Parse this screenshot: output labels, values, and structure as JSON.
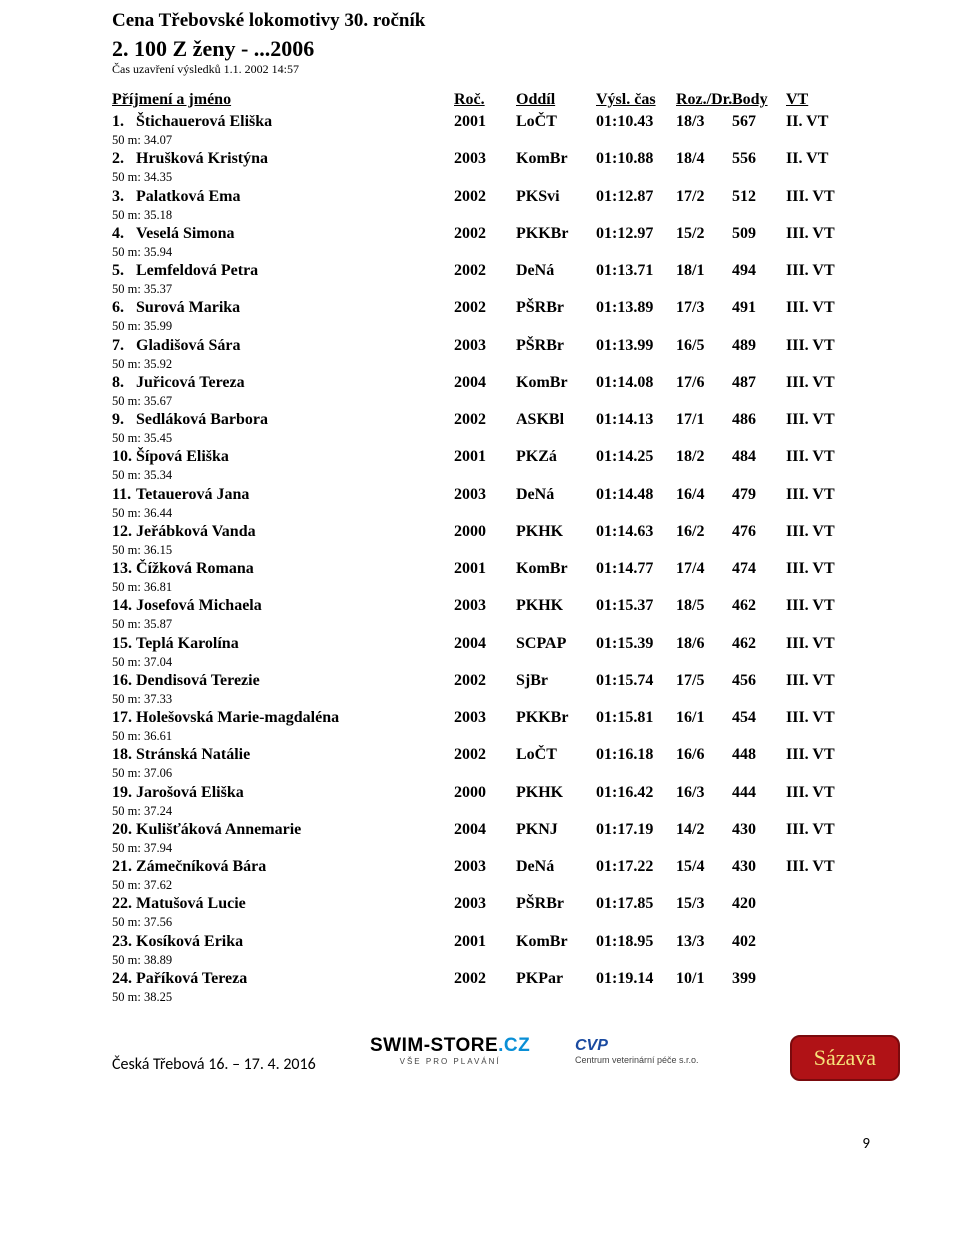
{
  "header": {
    "title": "Cena Třebovské lokomotivy 30. ročník",
    "event": "2. 100 Z ženy - ...2006",
    "closing": "Čas uzavření výsledků 1.1. 2002 14:57"
  },
  "columns": {
    "name": "Příjmení a jméno",
    "roc": "Roč.",
    "oddil": "Oddíl",
    "cas": "Výsl. čas",
    "roz": "Roz./Dr.",
    "body": "Body",
    "vt": "VT"
  },
  "rows": [
    {
      "rank": "1.",
      "name": "Štichauerová Eliška",
      "roc": "2001",
      "oddil": "LoČT",
      "cas": "01:10.43",
      "roz": "18/3",
      "body": "567",
      "vt": "II. VT",
      "split": "50 m: 34.07"
    },
    {
      "rank": "2.",
      "name": "Hrušková Kristýna",
      "roc": "2003",
      "oddil": "KomBr",
      "cas": "01:10.88",
      "roz": "18/4",
      "body": "556",
      "vt": "II. VT",
      "split": "50 m: 34.35"
    },
    {
      "rank": "3.",
      "name": "Palatková Ema",
      "roc": "2002",
      "oddil": "PKSvi",
      "cas": "01:12.87",
      "roz": "17/2",
      "body": "512",
      "vt": "III. VT",
      "split": "50 m: 35.18"
    },
    {
      "rank": "4.",
      "name": "Veselá Simona",
      "roc": "2002",
      "oddil": "PKKBr",
      "cas": "01:12.97",
      "roz": "15/2",
      "body": "509",
      "vt": "III. VT",
      "split": "50 m: 35.94"
    },
    {
      "rank": "5.",
      "name": "Lemfeldová Petra",
      "roc": "2002",
      "oddil": "DeNá",
      "cas": "01:13.71",
      "roz": "18/1",
      "body": "494",
      "vt": "III. VT",
      "split": "50 m: 35.37"
    },
    {
      "rank": "6.",
      "name": "Surová Marika",
      "roc": "2002",
      "oddil": "PŠRBr",
      "cas": "01:13.89",
      "roz": "17/3",
      "body": "491",
      "vt": "III. VT",
      "split": "50 m: 35.99"
    },
    {
      "rank": "7.",
      "name": "Gladišová Sára",
      "roc": "2003",
      "oddil": "PŠRBr",
      "cas": "01:13.99",
      "roz": "16/5",
      "body": "489",
      "vt": "III. VT",
      "split": "50 m: 35.92"
    },
    {
      "rank": "8.",
      "name": "Juřicová Tereza",
      "roc": "2004",
      "oddil": "KomBr",
      "cas": "01:14.08",
      "roz": "17/6",
      "body": "487",
      "vt": "III. VT",
      "split": "50 m: 35.67"
    },
    {
      "rank": "9.",
      "name": "Sedláková Barbora",
      "roc": "2002",
      "oddil": "ASKBl",
      "cas": "01:14.13",
      "roz": "17/1",
      "body": "486",
      "vt": "III. VT",
      "split": "50 m: 35.45"
    },
    {
      "rank": "10.",
      "name": "Šípová Eliška",
      "roc": "2001",
      "oddil": "PKZá",
      "cas": "01:14.25",
      "roz": "18/2",
      "body": "484",
      "vt": "III. VT",
      "split": "50 m: 35.34"
    },
    {
      "rank": "11.",
      "name": "Tetauerová Jana",
      "roc": "2003",
      "oddil": "DeNá",
      "cas": "01:14.48",
      "roz": "16/4",
      "body": "479",
      "vt": "III. VT",
      "split": "50 m: 36.44"
    },
    {
      "rank": "12.",
      "name": "Jeřábková Vanda",
      "roc": "2000",
      "oddil": "PKHK",
      "cas": "01:14.63",
      "roz": "16/2",
      "body": "476",
      "vt": "III. VT",
      "split": "50 m: 36.15"
    },
    {
      "rank": "13.",
      "name": "Čížková Romana",
      "roc": "2001",
      "oddil": "KomBr",
      "cas": "01:14.77",
      "roz": "17/4",
      "body": "474",
      "vt": "III. VT",
      "split": "50 m: 36.81"
    },
    {
      "rank": "14.",
      "name": "Josefová Michaela",
      "roc": "2003",
      "oddil": "PKHK",
      "cas": "01:15.37",
      "roz": "18/5",
      "body": "462",
      "vt": "III. VT",
      "split": "50 m: 35.87"
    },
    {
      "rank": "15.",
      "name": "Teplá Karolína",
      "roc": "2004",
      "oddil": "SCPAP",
      "cas": "01:15.39",
      "roz": "18/6",
      "body": "462",
      "vt": "III. VT",
      "split": "50 m: 37.04"
    },
    {
      "rank": "16.",
      "name": "Dendisová Terezie",
      "roc": "2002",
      "oddil": "SjBr",
      "cas": "01:15.74",
      "roz": "17/5",
      "body": "456",
      "vt": "III. VT",
      "split": "50 m: 37.33"
    },
    {
      "rank": "17.",
      "name": "Holešovská Marie-magdaléna",
      "roc": "2003",
      "oddil": "PKKBr",
      "cas": "01:15.81",
      "roz": "16/1",
      "body": "454",
      "vt": "III. VT",
      "split": "50 m: 36.61"
    },
    {
      "rank": "18.",
      "name": "Stránská Natálie",
      "roc": "2002",
      "oddil": "LoČT",
      "cas": "01:16.18",
      "roz": "16/6",
      "body": "448",
      "vt": "III. VT",
      "split": "50 m: 37.06"
    },
    {
      "rank": "19.",
      "name": "Jarošová Eliška",
      "roc": "2000",
      "oddil": "PKHK",
      "cas": "01:16.42",
      "roz": "16/3",
      "body": "444",
      "vt": "III. VT",
      "split": "50 m: 37.24"
    },
    {
      "rank": "20.",
      "name": "Kulišťáková Annemarie",
      "roc": "2004",
      "oddil": "PKNJ",
      "cas": "01:17.19",
      "roz": "14/2",
      "body": "430",
      "vt": "III. VT",
      "split": "50 m: 37.94"
    },
    {
      "rank": "21.",
      "name": "Zámečníková Bára",
      "roc": "2003",
      "oddil": "DeNá",
      "cas": "01:17.22",
      "roz": "15/4",
      "body": "430",
      "vt": "III. VT",
      "split": "50 m: 37.62"
    },
    {
      "rank": "22.",
      "name": "Matušová Lucie",
      "roc": "2003",
      "oddil": "PŠRBr",
      "cas": "01:17.85",
      "roz": "15/3",
      "body": "420",
      "vt": "",
      "split": "50 m: 37.56"
    },
    {
      "rank": "23.",
      "name": "Kosíková Erika",
      "roc": "2001",
      "oddil": "KomBr",
      "cas": "01:18.95",
      "roz": "13/3",
      "body": "402",
      "vt": "",
      "split": "50 m: 38.89"
    },
    {
      "rank": "24.",
      "name": "Paříková Tereza",
      "roc": "2002",
      "oddil": "PKPar",
      "cas": "01:19.14",
      "roz": "10/1",
      "body": "399",
      "vt": "",
      "split": "50 m: 38.25"
    }
  ],
  "footer": {
    "left": "Česká Třebová 16. – 17. 4. 2016",
    "swim1": "SWIM-STORE",
    "swim2": ".CZ",
    "swimtag": "VŠE PRO PLAVÁNÍ",
    "cvp1": "CVP",
    "cvp2": "Centrum veterinární péče s.r.o.",
    "saz": "Sázava",
    "page": "9"
  }
}
